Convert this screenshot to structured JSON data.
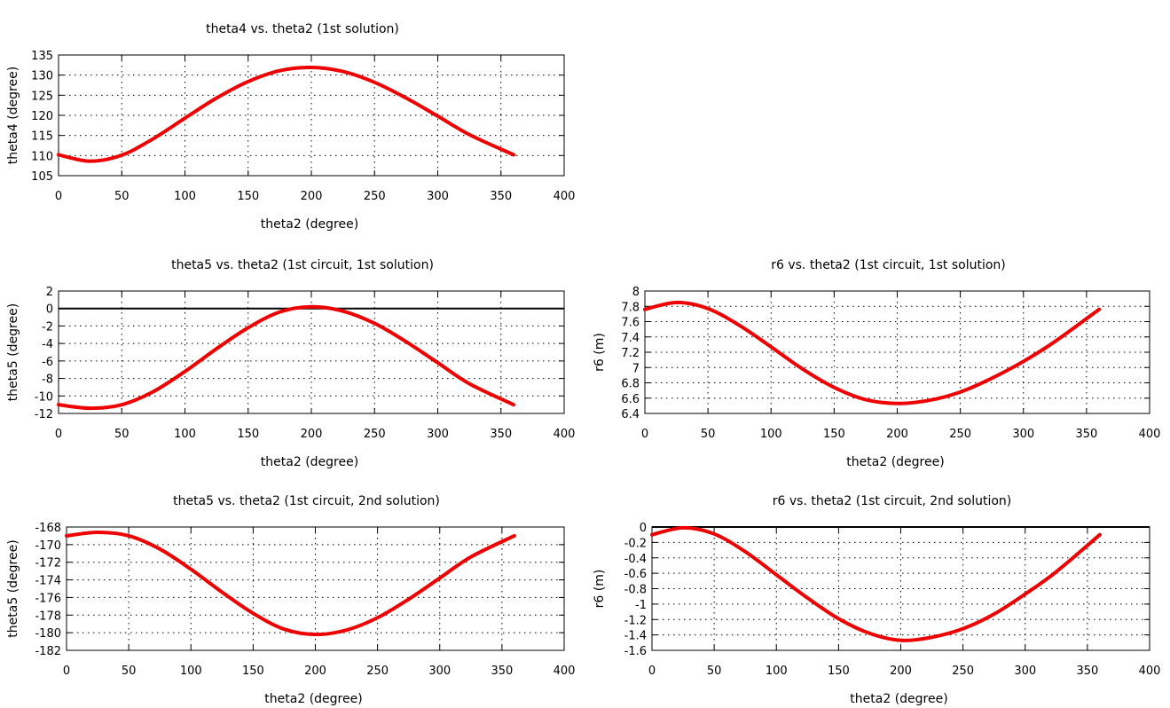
{
  "chart_data": [
    {
      "type": "line",
      "title": "theta4 vs. theta2 (1st solution)",
      "xlabel": "theta2 (degree)",
      "ylabel": "theta4 (degree)",
      "xlim": [
        0,
        400
      ],
      "ylim": [
        105,
        135
      ],
      "xticks": [
        "0",
        "50",
        "100",
        "150",
        "200",
        "250",
        "300",
        "350",
        "400"
      ],
      "yticks": [
        "105",
        "110",
        "115",
        "120",
        "125",
        "130",
        "135"
      ],
      "grid": true,
      "zero_line": false,
      "line_color": "#ee0000",
      "x": [
        0,
        25,
        50,
        75,
        100,
        125,
        150,
        175,
        200,
        225,
        250,
        275,
        300,
        325,
        360
      ],
      "y": [
        110.2,
        108.6,
        110.1,
        114.2,
        119.3,
        124.3,
        128.4,
        131.1,
        131.9,
        130.9,
        128.2,
        124.3,
        119.8,
        115.2,
        110.2
      ]
    },
    {
      "type": "line",
      "title": "theta5 vs. theta2 (1st circuit, 1st solution)",
      "xlabel": "theta2 (degree)",
      "ylabel": "theta5 (degree)",
      "xlim": [
        0,
        400
      ],
      "ylim": [
        -12,
        2
      ],
      "xticks": [
        "0",
        "50",
        "100",
        "150",
        "200",
        "250",
        "300",
        "350",
        "400"
      ],
      "yticks": [
        "-12",
        "-10",
        "-8",
        "-6",
        "-4",
        "-2",
        "0",
        "2"
      ],
      "grid": true,
      "zero_line": true,
      "line_color": "#ee0000",
      "x": [
        0,
        25,
        50,
        75,
        100,
        125,
        150,
        175,
        200,
        225,
        250,
        275,
        300,
        325,
        360
      ],
      "y": [
        -11.0,
        -11.4,
        -11.0,
        -9.5,
        -7.2,
        -4.6,
        -2.2,
        -0.4,
        0.2,
        -0.3,
        -1.7,
        -3.8,
        -6.2,
        -8.6,
        -11.0
      ]
    },
    {
      "type": "line",
      "title": "r6 vs. theta2 (1st circuit, 1st solution)",
      "xlabel": "theta2 (degree)",
      "ylabel": "r6 (m)",
      "xlim": [
        0,
        400
      ],
      "ylim": [
        6.4,
        8
      ],
      "xticks": [
        "0",
        "50",
        "100",
        "150",
        "200",
        "250",
        "300",
        "350",
        "400"
      ],
      "yticks": [
        "6.4",
        "6.6",
        "6.8",
        "7",
        "7.2",
        "7.4",
        "7.6",
        "7.8",
        "8"
      ],
      "grid": true,
      "zero_line": false,
      "line_color": "#ee0000",
      "x": [
        0,
        25,
        50,
        75,
        100,
        125,
        150,
        175,
        200,
        225,
        250,
        275,
        300,
        325,
        360
      ],
      "y": [
        7.76,
        7.85,
        7.77,
        7.55,
        7.27,
        6.98,
        6.74,
        6.58,
        6.53,
        6.57,
        6.68,
        6.86,
        7.08,
        7.34,
        7.76
      ]
    },
    {
      "type": "line",
      "title": "theta5 vs. theta2 (1st circuit, 2nd solution)",
      "xlabel": "theta2 (degree)",
      "ylabel": "theta5 (degree)",
      "xlim": [
        0,
        400
      ],
      "ylim": [
        -182,
        -168
      ],
      "xticks": [
        "0",
        "50",
        "100",
        "150",
        "200",
        "250",
        "300",
        "350",
        "400"
      ],
      "yticks": [
        "-182",
        "-180",
        "-178",
        "-176",
        "-174",
        "-172",
        "-170",
        "-168"
      ],
      "grid": true,
      "zero_line": false,
      "line_color": "#ee0000",
      "x": [
        0,
        25,
        50,
        75,
        100,
        125,
        150,
        175,
        200,
        225,
        250,
        275,
        300,
        325,
        360
      ],
      "y": [
        -169.0,
        -168.6,
        -169.0,
        -170.5,
        -172.8,
        -175.4,
        -177.8,
        -179.6,
        -180.2,
        -179.7,
        -178.3,
        -176.2,
        -173.8,
        -171.4,
        -169.0
      ]
    },
    {
      "type": "line",
      "title": "r6 vs. theta2 (1st circuit, 2nd solution)",
      "xlabel": "theta2 (degree)",
      "ylabel": "r6 (m)",
      "xlim": [
        0,
        400
      ],
      "ylim": [
        -1.6,
        0
      ],
      "xticks": [
        "0",
        "50",
        "100",
        "150",
        "200",
        "250",
        "300",
        "350",
        "400"
      ],
      "yticks": [
        "-1.6",
        "-1.4",
        "-1.2",
        "-1",
        "-0.8",
        "-0.6",
        "-0.4",
        "-0.2",
        "0"
      ],
      "grid": true,
      "zero_line": true,
      "line_color": "#ee0000",
      "x": [
        0,
        25,
        50,
        75,
        100,
        125,
        150,
        175,
        200,
        225,
        250,
        275,
        300,
        325,
        360
      ],
      "y": [
        -0.1,
        -0.01,
        -0.09,
        -0.32,
        -0.62,
        -0.92,
        -1.19,
        -1.38,
        -1.47,
        -1.43,
        -1.32,
        -1.13,
        -0.87,
        -0.58,
        -0.1
      ]
    }
  ]
}
